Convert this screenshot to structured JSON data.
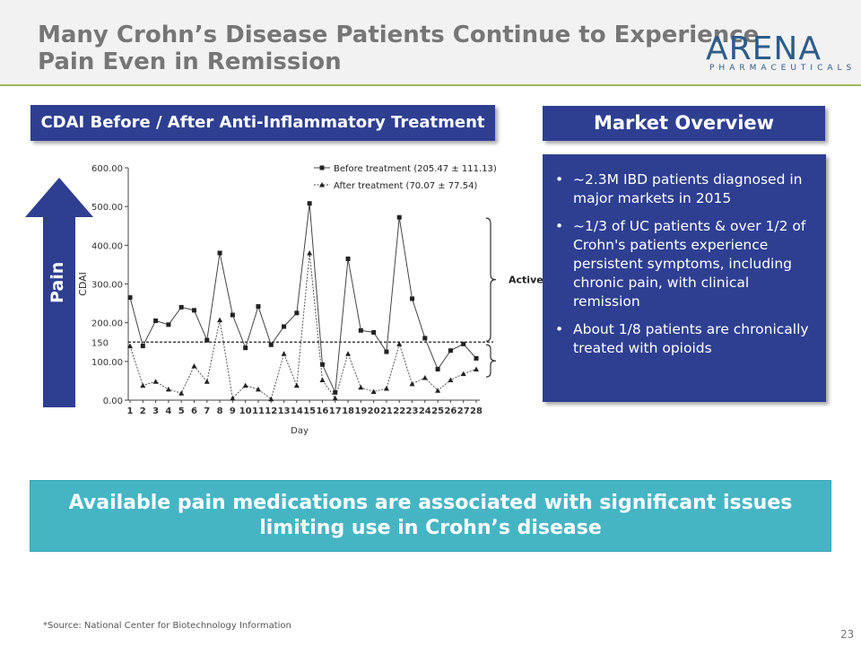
{
  "slide": {
    "title_line1": "Many Crohn’s Disease Patients Continue to Experience",
    "title_line2": "Pain Even in Remission",
    "logo_main": "ARENA",
    "logo_sub": "PHARMACEUTICALS",
    "page_number": "23",
    "source": "*Source:  National Center for Biotechnology Information",
    "pain_label": "Pain"
  },
  "chart_panel": {
    "heading": "CDAI Before / After Anti-Inflammatory Treatment"
  },
  "market": {
    "heading": "Market Overview",
    "bullets": [
      "~2.3M IBD patients diagnosed in major markets in 2015",
      "~1/3 of UC patients & over 1/2 of Crohn's patients experience persistent symptoms, including chronic pain, with clinical remission",
      "About 1/8 patients are chronically treated with opioids"
    ]
  },
  "banner": {
    "line1": "Available pain medications are associated with significant issues",
    "line2": "limiting use in Crohn’s disease"
  },
  "colors": {
    "navy": "#2e3f92",
    "teal": "#45b5c4",
    "header_rule": "#9bbb59",
    "title_gray": "#767676"
  },
  "chart_data": {
    "type": "line",
    "title": "",
    "xlabel": "Day",
    "ylabel": "CDAI",
    "x": [
      1,
      2,
      3,
      4,
      5,
      6,
      7,
      8,
      9,
      10,
      11,
      12,
      13,
      14,
      15,
      16,
      17,
      18,
      19,
      20,
      21,
      22,
      23,
      24,
      25,
      26,
      27,
      28
    ],
    "ylim": [
      0,
      600
    ],
    "yticks": [
      "0.00",
      "100.00",
      "200.00",
      "300.00",
      "400.00",
      "500.00",
      "600.00"
    ],
    "threshold": {
      "value": 150,
      "label": "150"
    },
    "bracket_label": "Active",
    "series": [
      {
        "name": "Before treatment (205.47 ± 111.13)",
        "marker": "square",
        "values": [
          265,
          140,
          205,
          195,
          240,
          232,
          155,
          380,
          220,
          135,
          242,
          143,
          190,
          225,
          508,
          92,
          20,
          365,
          180,
          175,
          125,
          472,
          262,
          160,
          80,
          128,
          145,
          108
        ]
      },
      {
        "name": "After treatment (70.07 ± 77.54)",
        "marker": "triangle",
        "values": [
          140,
          38,
          48,
          28,
          18,
          88,
          48,
          207,
          5,
          38,
          28,
          3,
          120,
          38,
          380,
          52,
          5,
          120,
          33,
          22,
          30,
          145,
          42,
          58,
          25,
          52,
          68,
          80
        ]
      }
    ]
  }
}
